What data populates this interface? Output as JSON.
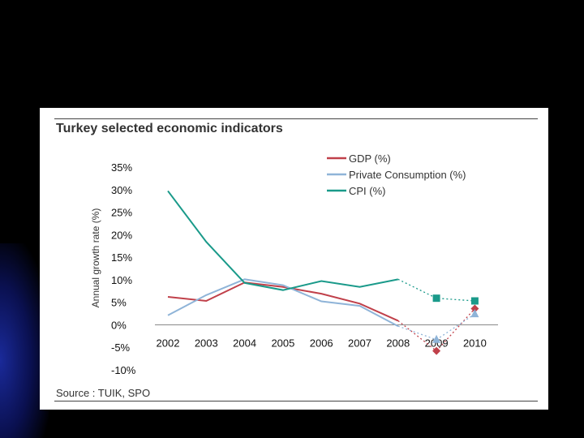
{
  "chart_data": {
    "type": "line",
    "title": "Turkey selected economic indicators",
    "ylabel": "Annual growth rate (%)",
    "xlabel": "",
    "source": "Source : TUIK, SPO",
    "categories": [
      "2002",
      "2003",
      "2004",
      "2005",
      "2006",
      "2007",
      "2008",
      "2009",
      "2010"
    ],
    "ylim": [
      -10,
      35
    ],
    "yticks": [
      35,
      30,
      25,
      20,
      15,
      10,
      5,
      0,
      -5,
      -10
    ],
    "ytick_labels": [
      "35%",
      "30%",
      "25%",
      "20%",
      "15%",
      "10%",
      "5%",
      "0%",
      "-5%",
      "-10%"
    ],
    "forecast_from": "2008",
    "legend_position": "top-right",
    "series": [
      {
        "name": "GDP (%)",
        "color": "#c0404a",
        "marker": "diamond",
        "values": [
          6.2,
          5.3,
          9.4,
          8.4,
          6.9,
          4.7,
          0.9,
          -5.8,
          3.6
        ]
      },
      {
        "name": "Private Consumption (%)",
        "color": "#8fb4d8",
        "marker": "triangle",
        "values": [
          2.1,
          6.6,
          10.1,
          8.8,
          5.2,
          4.2,
          -0.3,
          -3.3,
          2.4
        ]
      },
      {
        "name": "CPI (%)",
        "color": "#1a9a8a",
        "marker": "square",
        "values": [
          29.7,
          18.4,
          9.3,
          7.7,
          9.7,
          8.4,
          10.1,
          5.9,
          5.3
        ]
      }
    ]
  }
}
